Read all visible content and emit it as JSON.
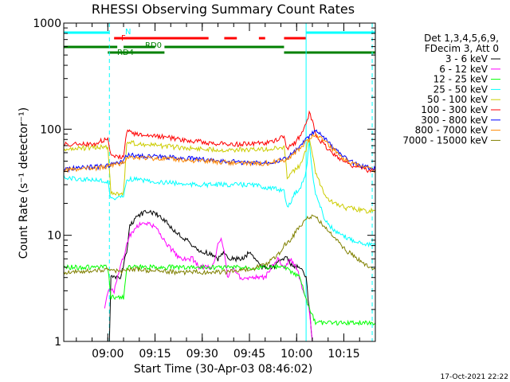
{
  "chart_data": {
    "type": "line",
    "title": "RHESSI Observing Summary Count Rates",
    "xlabel": "Start Time (30-Apr-03 08:46:02)",
    "ylabel": "Count Rate (s⁻¹ detector⁻¹)",
    "x_unit": "minutes from 08:46:02",
    "xlim": [
      0,
      99
    ],
    "ylim": [
      1,
      1000
    ],
    "y_scale": "log",
    "x_ticks": [
      {
        "x": 14,
        "label": "09:00"
      },
      {
        "x": 29,
        "label": "09:15"
      },
      {
        "x": 44,
        "label": "09:30"
      },
      {
        "x": 59,
        "label": "09:45"
      },
      {
        "x": 74,
        "label": "10:00"
      },
      {
        "x": 89,
        "label": "10:15"
      }
    ],
    "y_ticks": [
      {
        "y": 1,
        "label": "1"
      },
      {
        "y": 10,
        "label": "10"
      },
      {
        "y": 100,
        "label": "100"
      },
      {
        "y": 1000,
        "label": "1000"
      }
    ],
    "legend_header": [
      "Det 1,3,4,5,6,9,",
      "FDecim 3, Att 0"
    ],
    "legend_position": "right",
    "series": [
      {
        "name": "3 - 6 keV",
        "color": "#000000",
        "points": [
          [
            14.5,
            1
          ],
          [
            15,
            4
          ],
          [
            18,
            4
          ],
          [
            20,
            7
          ],
          [
            21,
            12
          ],
          [
            23,
            15
          ],
          [
            25,
            16
          ],
          [
            27,
            17
          ],
          [
            29,
            16
          ],
          [
            31,
            15
          ],
          [
            33,
            13
          ],
          [
            35,
            11
          ],
          [
            37,
            10
          ],
          [
            39,
            9
          ],
          [
            41,
            8
          ],
          [
            43,
            7
          ],
          [
            45,
            7
          ],
          [
            47,
            6.5
          ],
          [
            49,
            6
          ],
          [
            51,
            7
          ],
          [
            53,
            6
          ],
          [
            55,
            6
          ],
          [
            57,
            6
          ],
          [
            59,
            7
          ],
          [
            61,
            6
          ],
          [
            63,
            5
          ],
          [
            65,
            5
          ],
          [
            67,
            5
          ],
          [
            69,
            6
          ],
          [
            71,
            6
          ],
          [
            73,
            5
          ],
          [
            75,
            5
          ],
          [
            77,
            4
          ],
          [
            78,
            2
          ],
          [
            79,
            1
          ]
        ]
      },
      {
        "name": "6 - 12 keV",
        "color": "#ff00ff",
        "points": [
          [
            13,
            2
          ],
          [
            14,
            3
          ],
          [
            16,
            3
          ],
          [
            18,
            5
          ],
          [
            20,
            8
          ],
          [
            21,
            10
          ],
          [
            23,
            12
          ],
          [
            25,
            13
          ],
          [
            27,
            13
          ],
          [
            29,
            12
          ],
          [
            31,
            10
          ],
          [
            33,
            8
          ],
          [
            35,
            7
          ],
          [
            37,
            6
          ],
          [
            39,
            6
          ],
          [
            41,
            6
          ],
          [
            43,
            5
          ],
          [
            45,
            5
          ],
          [
            47,
            5
          ],
          [
            48,
            6
          ],
          [
            49,
            8
          ],
          [
            50,
            9
          ],
          [
            51,
            7
          ],
          [
            52,
            4
          ],
          [
            54,
            5
          ],
          [
            56,
            4
          ],
          [
            58,
            4
          ],
          [
            60,
            4
          ],
          [
            62,
            4
          ],
          [
            64,
            4
          ],
          [
            66,
            5
          ],
          [
            68,
            6
          ],
          [
            70,
            5
          ],
          [
            72,
            6
          ],
          [
            74,
            5
          ],
          [
            76,
            3
          ],
          [
            78,
            2
          ],
          [
            79,
            1
          ]
        ]
      },
      {
        "name": "12 - 25 keV",
        "color": "#00ff00",
        "points": [
          [
            0,
            5
          ],
          [
            5,
            5
          ],
          [
            10,
            5
          ],
          [
            14,
            5
          ],
          [
            15,
            2.6
          ],
          [
            19,
            2.6
          ],
          [
            20,
            5
          ],
          [
            25,
            5
          ],
          [
            30,
            5
          ],
          [
            35,
            5
          ],
          [
            40,
            5
          ],
          [
            45,
            5
          ],
          [
            50,
            5
          ],
          [
            55,
            5
          ],
          [
            60,
            5
          ],
          [
            65,
            5
          ],
          [
            70,
            5
          ],
          [
            75,
            4
          ],
          [
            78,
            2
          ],
          [
            80,
            1.5
          ],
          [
            85,
            1.5
          ],
          [
            90,
            1.5
          ],
          [
            95,
            1.5
          ],
          [
            99,
            1.5
          ]
        ]
      },
      {
        "name": "25 - 50 keV",
        "color": "#00ffff",
        "points": [
          [
            0,
            35
          ],
          [
            5,
            34
          ],
          [
            10,
            33
          ],
          [
            14,
            32
          ],
          [
            15,
            22
          ],
          [
            19,
            23
          ],
          [
            20,
            34
          ],
          [
            25,
            33
          ],
          [
            30,
            32
          ],
          [
            35,
            31
          ],
          [
            40,
            30
          ],
          [
            45,
            30
          ],
          [
            50,
            30
          ],
          [
            55,
            30
          ],
          [
            60,
            30
          ],
          [
            65,
            28
          ],
          [
            68,
            27
          ],
          [
            70,
            27
          ],
          [
            71,
            18
          ],
          [
            72,
            20
          ],
          [
            73,
            24
          ],
          [
            75,
            28
          ],
          [
            76,
            32
          ],
          [
            77,
            40
          ],
          [
            78,
            75
          ],
          [
            79,
            40
          ],
          [
            80,
            25
          ],
          [
            83,
            14
          ],
          [
            86,
            11
          ],
          [
            88,
            10
          ],
          [
            90,
            9.5
          ],
          [
            92,
            9
          ],
          [
            95,
            8.5
          ],
          [
            99,
            8
          ]
        ]
      },
      {
        "name": "50 - 100 keV",
        "color": "#cccc00",
        "points": [
          [
            0,
            65
          ],
          [
            5,
            66
          ],
          [
            10,
            67
          ],
          [
            14,
            68
          ],
          [
            15,
            25
          ],
          [
            19,
            25
          ],
          [
            20,
            75
          ],
          [
            25,
            72
          ],
          [
            30,
            70
          ],
          [
            35,
            68
          ],
          [
            40,
            66
          ],
          [
            45,
            65
          ],
          [
            50,
            64
          ],
          [
            55,
            64
          ],
          [
            60,
            64
          ],
          [
            65,
            65
          ],
          [
            68,
            66
          ],
          [
            70,
            67
          ],
          [
            71,
            36
          ],
          [
            73,
            40
          ],
          [
            75,
            45
          ],
          [
            76,
            52
          ],
          [
            77,
            65
          ],
          [
            78,
            85
          ],
          [
            79,
            60
          ],
          [
            80,
            40
          ],
          [
            82,
            28
          ],
          [
            84,
            22
          ],
          [
            86,
            20
          ],
          [
            88,
            19
          ],
          [
            90,
            18
          ],
          [
            92,
            18
          ],
          [
            95,
            17
          ],
          [
            99,
            17
          ]
        ]
      },
      {
        "name": "100 - 300 keV",
        "color": "#ff0000",
        "points": [
          [
            0,
            72
          ],
          [
            5,
            72
          ],
          [
            10,
            73
          ],
          [
            13,
            80
          ],
          [
            14,
            85
          ],
          [
            15,
            55
          ],
          [
            19,
            55
          ],
          [
            20,
            95
          ],
          [
            23,
            90
          ],
          [
            27,
            88
          ],
          [
            31,
            85
          ],
          [
            35,
            82
          ],
          [
            40,
            78
          ],
          [
            45,
            75
          ],
          [
            50,
            73
          ],
          [
            55,
            72
          ],
          [
            60,
            73
          ],
          [
            65,
            75
          ],
          [
            68,
            80
          ],
          [
            70,
            85
          ],
          [
            71,
            65
          ],
          [
            73,
            72
          ],
          [
            75,
            85
          ],
          [
            76,
            95
          ],
          [
            77,
            110
          ],
          [
            78,
            140
          ],
          [
            79,
            120
          ],
          [
            80,
            90
          ],
          [
            82,
            75
          ],
          [
            84,
            65
          ],
          [
            86,
            58
          ],
          [
            88,
            52
          ],
          [
            90,
            48
          ],
          [
            92,
            45
          ],
          [
            95,
            42
          ],
          [
            99,
            40
          ]
        ]
      },
      {
        "name": "300 - 800 keV",
        "color": "#0000ff",
        "points": [
          [
            0,
            42
          ],
          [
            5,
            43
          ],
          [
            10,
            44
          ],
          [
            14,
            45
          ],
          [
            15,
            47
          ],
          [
            19,
            49
          ],
          [
            20,
            57
          ],
          [
            25,
            56
          ],
          [
            30,
            55
          ],
          [
            35,
            54
          ],
          [
            40,
            53
          ],
          [
            45,
            52
          ],
          [
            50,
            50
          ],
          [
            55,
            49
          ],
          [
            60,
            48
          ],
          [
            65,
            49
          ],
          [
            70,
            52
          ],
          [
            73,
            60
          ],
          [
            75,
            68
          ],
          [
            77,
            80
          ],
          [
            79,
            92
          ],
          [
            80,
            95
          ],
          [
            82,
            88
          ],
          [
            84,
            75
          ],
          [
            86,
            65
          ],
          [
            88,
            58
          ],
          [
            90,
            52
          ],
          [
            92,
            48
          ],
          [
            95,
            45
          ],
          [
            99,
            42
          ]
        ]
      },
      {
        "name": "800 - 7000 keV",
        "color": "#ff8800",
        "points": [
          [
            0,
            41
          ],
          [
            5,
            42
          ],
          [
            10,
            43
          ],
          [
            14,
            44
          ],
          [
            15,
            46
          ],
          [
            19,
            48
          ],
          [
            20,
            55
          ],
          [
            25,
            54
          ],
          [
            30,
            53
          ],
          [
            35,
            52
          ],
          [
            40,
            51
          ],
          [
            45,
            50
          ],
          [
            50,
            49
          ],
          [
            55,
            48
          ],
          [
            60,
            47
          ],
          [
            65,
            48
          ],
          [
            70,
            51
          ],
          [
            73,
            58
          ],
          [
            75,
            66
          ],
          [
            77,
            76
          ],
          [
            79,
            85
          ],
          [
            80,
            88
          ],
          [
            82,
            82
          ],
          [
            84,
            72
          ],
          [
            86,
            63
          ],
          [
            88,
            56
          ],
          [
            90,
            50
          ],
          [
            92,
            47
          ],
          [
            95,
            44
          ],
          [
            99,
            41
          ]
        ]
      },
      {
        "name": "7000 - 15000 keV",
        "color": "#808000",
        "points": [
          [
            0,
            4.5
          ],
          [
            5,
            4.5
          ],
          [
            10,
            4.7
          ],
          [
            14,
            4.8
          ],
          [
            15,
            4.6
          ],
          [
            19,
            4.6
          ],
          [
            20,
            4.8
          ],
          [
            25,
            4.7
          ],
          [
            30,
            4.6
          ],
          [
            35,
            4.5
          ],
          [
            40,
            4.5
          ],
          [
            45,
            4.5
          ],
          [
            50,
            4.5
          ],
          [
            55,
            4.6
          ],
          [
            60,
            4.8
          ],
          [
            65,
            5.5
          ],
          [
            68,
            6.5
          ],
          [
            70,
            8
          ],
          [
            72,
            9
          ],
          [
            74,
            11
          ],
          [
            76,
            13
          ],
          [
            78,
            15
          ],
          [
            80,
            15
          ],
          [
            82,
            13
          ],
          [
            84,
            11
          ],
          [
            86,
            9.5
          ],
          [
            88,
            8
          ],
          [
            90,
            7
          ],
          [
            92,
            6.5
          ],
          [
            95,
            5.5
          ],
          [
            99,
            4.8
          ]
        ]
      }
    ],
    "status_bars": [
      {
        "label": "N",
        "color": "#00ffff",
        "y": "top",
        "segments": [
          [
            0,
            14.5
          ],
          [
            77,
            99
          ]
        ]
      },
      {
        "label": "F",
        "color": "#ff0000",
        "y": "upper",
        "segments": [
          [
            16,
            46
          ],
          [
            51,
            55
          ],
          [
            62,
            64
          ],
          [
            70,
            77
          ]
        ]
      },
      {
        "label": "RD0",
        "color": "#008000",
        "y": "middle",
        "segments": [
          [
            0,
            17
          ],
          [
            19,
            29
          ],
          [
            32,
            70
          ]
        ]
      },
      {
        "label": "RD4",
        "color": "#008000",
        "y": "lower",
        "segments": [
          [
            14,
            32
          ],
          [
            70,
            99
          ]
        ]
      }
    ],
    "vertical_markers": [
      {
        "x": 14.5,
        "color": "#00ffff",
        "style": "dashed"
      },
      {
        "x": 77,
        "color": "#00ffff",
        "style": "solid"
      },
      {
        "x": 98,
        "color": "#00ffff",
        "style": "dashed"
      }
    ]
  },
  "timestamp": "17-Oct-2021 22:22"
}
